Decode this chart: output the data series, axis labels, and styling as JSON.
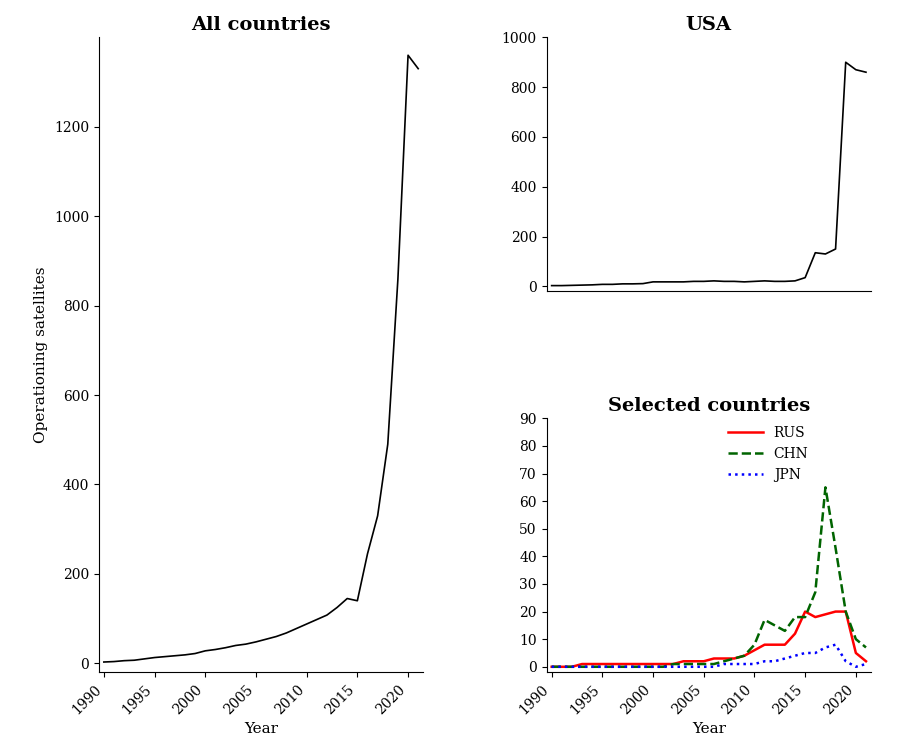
{
  "years": [
    1990,
    1991,
    1992,
    1993,
    1994,
    1995,
    1996,
    1997,
    1998,
    1999,
    2000,
    2001,
    2002,
    2003,
    2004,
    2005,
    2006,
    2007,
    2008,
    2009,
    2010,
    2011,
    2012,
    2013,
    2014,
    2015,
    2016,
    2017,
    2018,
    2019,
    2020,
    2021
  ],
  "all_countries": [
    3,
    4,
    6,
    7,
    10,
    13,
    15,
    17,
    19,
    22,
    28,
    31,
    35,
    40,
    43,
    48,
    54,
    60,
    68,
    78,
    88,
    98,
    108,
    125,
    145,
    140,
    245,
    330,
    490,
    860,
    1360,
    1330
  ],
  "usa": [
    3,
    3,
    4,
    5,
    6,
    8,
    8,
    10,
    10,
    11,
    18,
    18,
    18,
    18,
    20,
    20,
    22,
    20,
    20,
    18,
    20,
    22,
    20,
    20,
    22,
    35,
    135,
    130,
    150,
    900,
    870,
    860
  ],
  "rus": [
    0,
    0,
    0,
    1,
    1,
    1,
    1,
    1,
    1,
    1,
    1,
    1,
    1,
    2,
    2,
    2,
    3,
    3,
    3,
    4,
    6,
    8,
    8,
    8,
    12,
    20,
    18,
    19,
    20,
    20,
    5,
    2
  ],
  "chn": [
    0,
    0,
    0,
    0,
    0,
    0,
    0,
    0,
    0,
    0,
    0,
    0,
    1,
    1,
    1,
    1,
    1,
    2,
    3,
    4,
    8,
    17,
    15,
    13,
    18,
    18,
    27,
    65,
    43,
    20,
    10,
    7
  ],
  "jpn": [
    0,
    0,
    0,
    0,
    0,
    0,
    0,
    0,
    0,
    0,
    0,
    0,
    0,
    0,
    0,
    0,
    0,
    1,
    1,
    1,
    1,
    2,
    2,
    3,
    4,
    5,
    5,
    7,
    8,
    2,
    0,
    1
  ],
  "title_all": "All countries",
  "title_usa": "USA",
  "title_selected": "Selected countries",
  "ylabel": "Operationing satellites",
  "xlabel": "Year",
  "legend_labels": [
    "RUS",
    "CHN",
    "JPN"
  ],
  "legend_colors": [
    "red",
    "darkgreen",
    "blue"
  ],
  "legend_styles": [
    "-",
    "--",
    ":"
  ],
  "ylim_all": [
    -20,
    1400
  ],
  "ylim_usa": [
    -20,
    1000
  ],
  "ylim_selected": [
    -2,
    90
  ],
  "xlim": [
    1989.5,
    2021.5
  ],
  "xticks": [
    1990,
    1995,
    2000,
    2005,
    2010,
    2015,
    2020
  ],
  "yticks_all": [
    0,
    200,
    400,
    600,
    800,
    1000,
    1200
  ],
  "yticks_usa": [
    0,
    200,
    400,
    600,
    800,
    1000
  ],
  "yticks_sel": [
    0,
    10,
    20,
    30,
    40,
    50,
    60,
    70,
    80,
    90
  ]
}
